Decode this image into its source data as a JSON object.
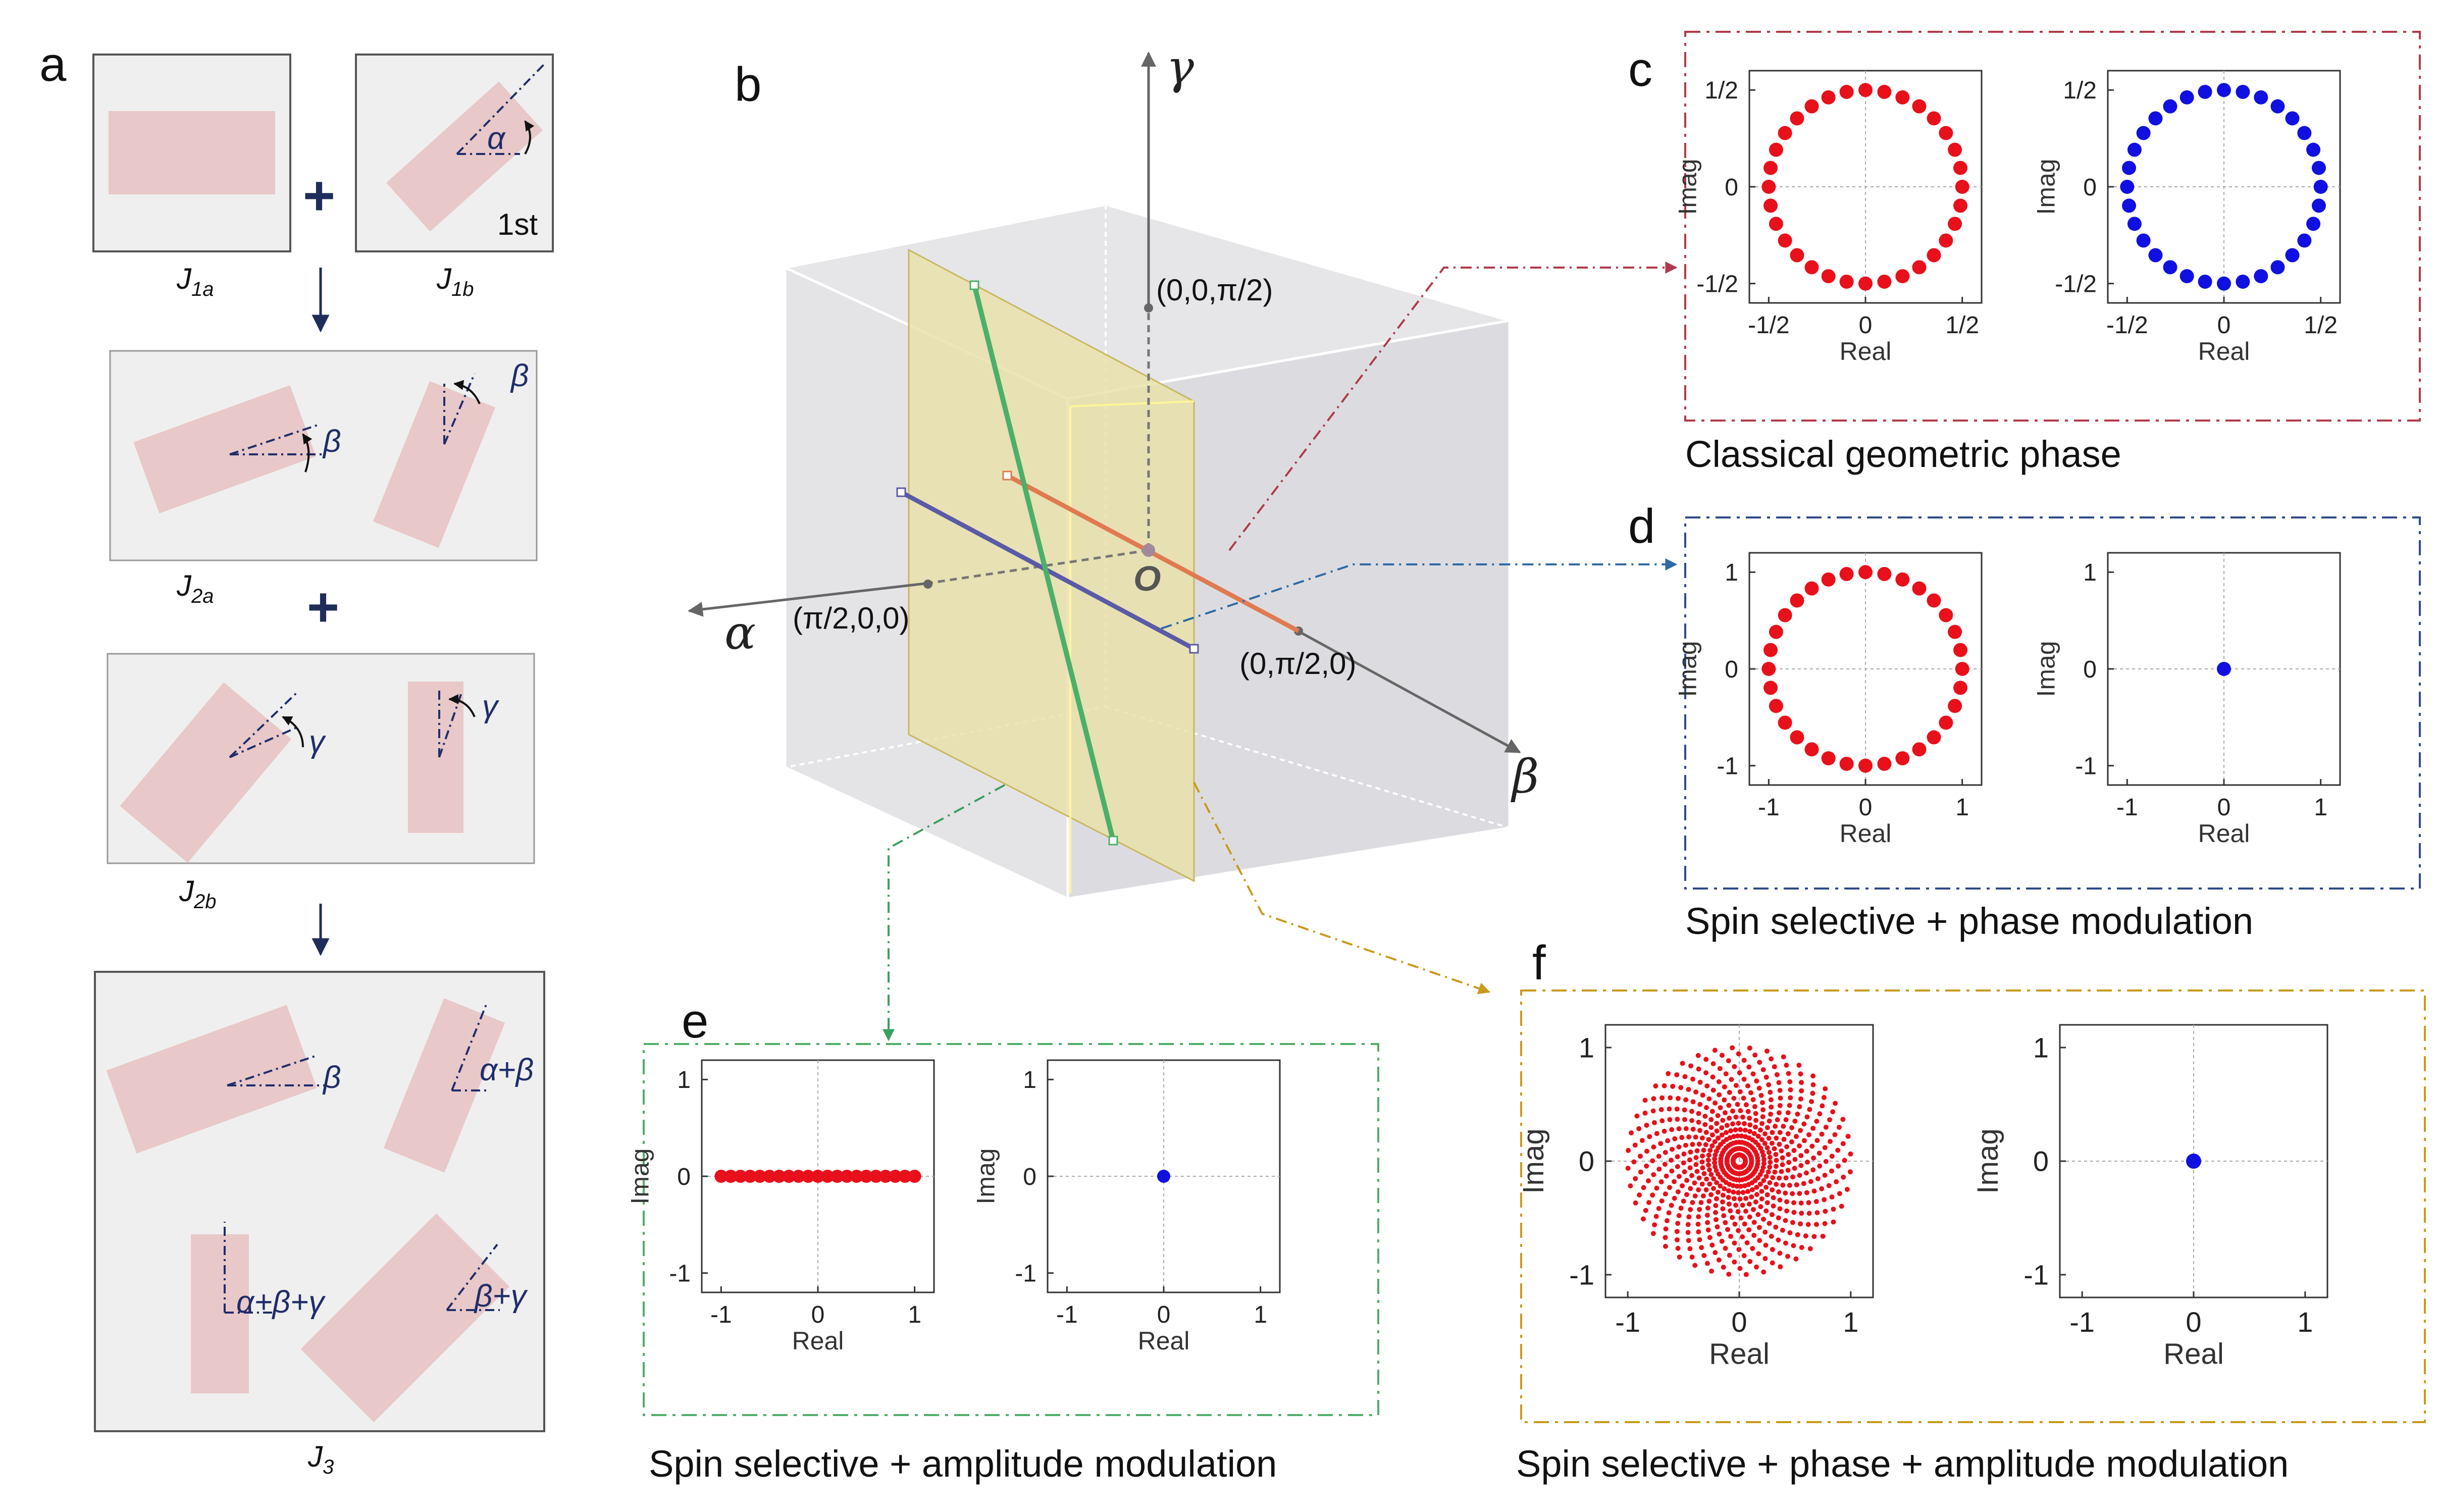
{
  "panel_labels": {
    "a": "a",
    "b": "b",
    "c": "c",
    "d": "d",
    "e": "e",
    "f": "f"
  },
  "panel_a": {
    "j1a": "J1a",
    "j1b": "J1b",
    "j2a": "J2a",
    "j2b": "J2b",
    "j3": "J3",
    "first": "1st",
    "alpha": "α",
    "beta": "β",
    "gamma": "γ",
    "alpha_beta": "α+β",
    "alpha_beta_gamma": "α+β+γ",
    "beta_gamma": "β+γ",
    "plus": "+"
  },
  "panel_b": {
    "axis_alpha": "α",
    "axis_beta": "β",
    "axis_gamma": "γ",
    "origin": "O",
    "pt_gamma": "(0,0,π/2)",
    "pt_alpha": "(π/2,0,0)",
    "pt_beta": "(0,π/2,0)"
  },
  "captions": {
    "c": "Classical geometric phase",
    "d": "Spin selective + phase modulation",
    "e": "Spin selective + amplitude modulation",
    "f": "Spin selective + phase + amplitude modulation"
  },
  "axis_text": {
    "real": "Real",
    "imag": "Imag"
  },
  "colors": {
    "red": "#e8101a",
    "blue": "#1010e0",
    "c_border": "#b03a4a",
    "d_border": "#2e4a86",
    "e_border": "#4fae6a",
    "f_border": "#c89a1a",
    "rect_fill": "#e8c8c8"
  },
  "chart_data": [
    {
      "type": "scatter",
      "panel": "c-left",
      "x_ticks": [
        "-1/2",
        "0",
        "1/2"
      ],
      "y_ticks": [
        "1/2",
        "0",
        "-1/2"
      ],
      "xlim": [
        -0.6,
        0.6
      ],
      "ylim": [
        -0.6,
        0.6
      ],
      "series": [
        {
          "color": "#e8101a",
          "shape": "circle",
          "radius": 0.5,
          "count": 32
        }
      ]
    },
    {
      "type": "scatter",
      "panel": "c-right",
      "x_ticks": [
        "-1/2",
        "0",
        "1/2"
      ],
      "y_ticks": [
        "1/2",
        "0",
        "-1/2"
      ],
      "xlim": [
        -0.6,
        0.6
      ],
      "ylim": [
        -0.6,
        0.6
      ],
      "series": [
        {
          "color": "#1010e0",
          "shape": "circle",
          "radius": 0.5,
          "count": 32
        }
      ]
    },
    {
      "type": "scatter",
      "panel": "d-left",
      "x_ticks": [
        "-1",
        "0",
        "1"
      ],
      "y_ticks": [
        "1",
        "0",
        "-1"
      ],
      "xlim": [
        -1.2,
        1.2
      ],
      "ylim": [
        -1.2,
        1.2
      ],
      "series": [
        {
          "color": "#e8101a",
          "shape": "circle",
          "radius": 1,
          "count": 32
        }
      ]
    },
    {
      "type": "scatter",
      "panel": "d-right",
      "x_ticks": [
        "-1",
        "0",
        "1"
      ],
      "y_ticks": [
        "1",
        "0",
        "-1"
      ],
      "xlim": [
        -1.2,
        1.2
      ],
      "ylim": [
        -1.2,
        1.2
      ],
      "series": [
        {
          "color": "#1010e0",
          "points": [
            [
              0,
              0
            ]
          ]
        }
      ]
    },
    {
      "type": "scatter",
      "panel": "e-left",
      "x_ticks": [
        "-1",
        "0",
        "1"
      ],
      "y_ticks": [
        "1",
        "0",
        "-1"
      ],
      "xlim": [
        -1.2,
        1.2
      ],
      "ylim": [
        -1.2,
        1.2
      ],
      "series": [
        {
          "color": "#e8101a",
          "shape": "line",
          "x_range": [
            -1,
            1
          ],
          "count": 21
        }
      ]
    },
    {
      "type": "scatter",
      "panel": "e-right",
      "x_ticks": [
        "-1",
        "0",
        "1"
      ],
      "y_ticks": [
        "1",
        "0",
        "-1"
      ],
      "xlim": [
        -1.2,
        1.2
      ],
      "ylim": [
        -1.2,
        1.2
      ],
      "series": [
        {
          "color": "#1010e0",
          "points": [
            [
              0,
              0
            ]
          ]
        }
      ]
    },
    {
      "type": "scatter",
      "panel": "f-left",
      "x_ticks": [
        "-1",
        "0",
        "1"
      ],
      "y_ticks": [
        "1",
        "0",
        "-1"
      ],
      "xlim": [
        -1.2,
        1.2
      ],
      "ylim": [
        -1.2,
        1.2
      ],
      "series": [
        {
          "color": "#e8101a",
          "shape": "disk",
          "radius": 1,
          "rings": 18,
          "points_per_ring": 40
        }
      ]
    },
    {
      "type": "scatter",
      "panel": "f-right",
      "x_ticks": [
        "-1",
        "0",
        "1"
      ],
      "y_ticks": [
        "1",
        "0",
        "-1"
      ],
      "xlim": [
        -1.2,
        1.2
      ],
      "ylim": [
        -1.2,
        1.2
      ],
      "series": [
        {
          "color": "#1010e0",
          "points": [
            [
              0,
              0
            ]
          ]
        }
      ]
    }
  ]
}
